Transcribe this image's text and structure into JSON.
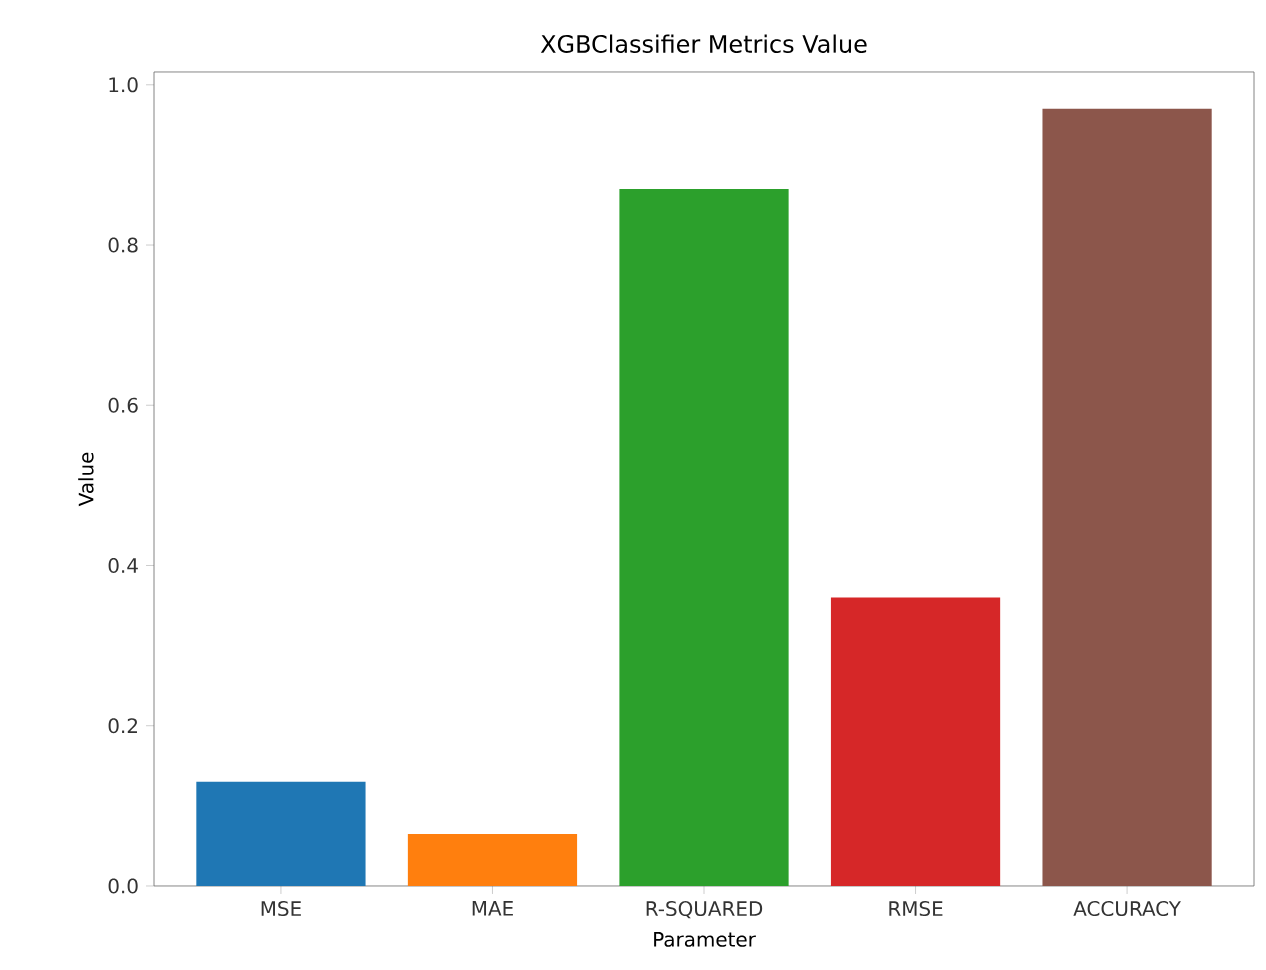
{
  "chart_data": {
    "type": "bar",
    "title": "XGBClassifier Metrics Value",
    "xlabel": "Parameter",
    "ylabel": "Value",
    "categories": [
      "MSE",
      "MAE",
      "R-SQUARED",
      "RMSE",
      "ACCURACY"
    ],
    "values": [
      0.13,
      0.065,
      0.87,
      0.36,
      0.97
    ],
    "colors": [
      "#1f77b4",
      "#ff7f0e",
      "#2ca02c",
      "#d62728",
      "#8c564b"
    ],
    "ylim": [
      0,
      1.016
    ],
    "yticks": [
      {
        "value": 0,
        "label": "0.0"
      },
      0.2,
      0.4,
      0.6,
      0.8,
      {
        "value": 1,
        "label": "1.0"
      }
    ],
    "grid": false
  }
}
